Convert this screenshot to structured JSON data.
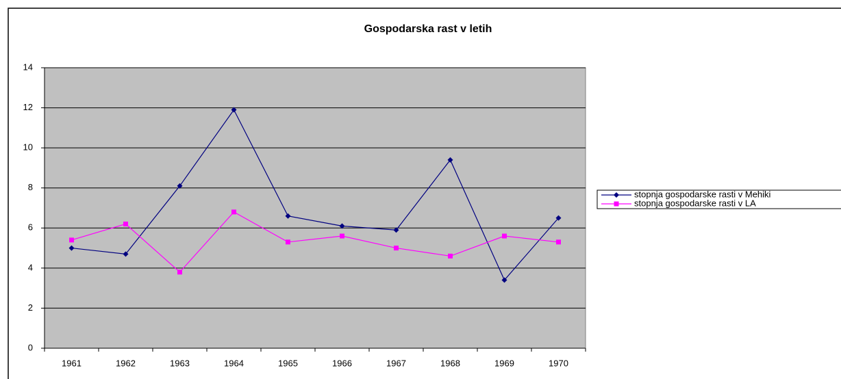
{
  "chart_data": {
    "type": "line",
    "title": "Gospodarska rast v letih",
    "categories": [
      "1961",
      "1962",
      "1963",
      "1964",
      "1965",
      "1966",
      "1967",
      "1968",
      "1969",
      "1970"
    ],
    "series": [
      {
        "name": "stopnja gospodarske rasti v Mehiki",
        "color": "#000080",
        "marker": "diamond",
        "values": [
          5.0,
          4.7,
          8.1,
          11.9,
          6.6,
          6.1,
          5.9,
          9.4,
          3.4,
          6.5
        ]
      },
      {
        "name": "stopnja gospodarske rasti v LA",
        "color": "#ff00ff",
        "marker": "square",
        "values": [
          5.4,
          6.2,
          3.8,
          6.8,
          5.3,
          5.6,
          5.0,
          4.6,
          5.6,
          5.3
        ]
      }
    ],
    "ylim": [
      0,
      14
    ],
    "yticks": [
      0,
      2,
      4,
      6,
      8,
      10,
      12,
      14
    ],
    "grid": true,
    "legend": "right"
  }
}
